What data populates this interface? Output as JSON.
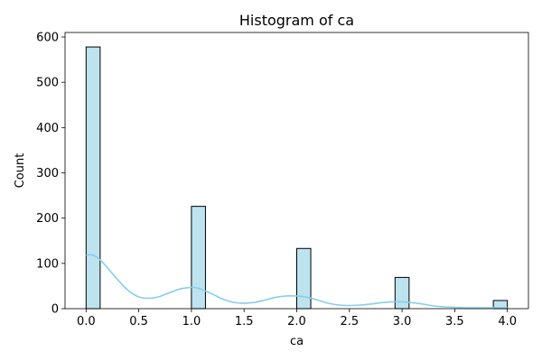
{
  "chart_data": {
    "type": "bar",
    "title": "Histogram of ca",
    "xlabel": "ca",
    "ylabel": "Count",
    "xlim": [
      -0.2,
      4.2
    ],
    "ylim": [
      0,
      610
    ],
    "xticks": [
      0.0,
      0.5,
      1.0,
      1.5,
      2.0,
      2.5,
      3.0,
      3.5,
      4.0
    ],
    "xtick_labels": [
      "0.0",
      "0.5",
      "1.0",
      "1.5",
      "2.0",
      "2.5",
      "3.0",
      "3.5",
      "4.0"
    ],
    "yticks": [
      0,
      100,
      200,
      300,
      400,
      500,
      600
    ],
    "ytick_labels": [
      "0",
      "100",
      "200",
      "300",
      "400",
      "500",
      "600"
    ],
    "bins": [
      {
        "x0": 0.0,
        "x1": 0.1333,
        "count": 578
      },
      {
        "x0": 1.0,
        "x1": 1.1333,
        "count": 226
      },
      {
        "x0": 2.0,
        "x1": 2.1333,
        "count": 133
      },
      {
        "x0": 2.9333,
        "x1": 3.0667,
        "count": 69
      },
      {
        "x0": 3.8667,
        "x1": 4.0,
        "count": 18
      }
    ],
    "kde": {
      "x": [
        0.0,
        0.05,
        0.1,
        0.15,
        0.2,
        0.3,
        0.4,
        0.5,
        0.6,
        0.7,
        0.8,
        0.9,
        1.0,
        1.05,
        1.1,
        1.2,
        1.3,
        1.4,
        1.5,
        1.6,
        1.7,
        1.8,
        1.9,
        2.0,
        2.05,
        2.1,
        2.2,
        2.3,
        2.4,
        2.5,
        2.6,
        2.7,
        2.8,
        2.9,
        3.0,
        3.05,
        3.1,
        3.2,
        3.3,
        3.4,
        3.5,
        3.6,
        3.7,
        3.8,
        3.9,
        4.0
      ],
      "y": [
        118,
        119,
        114,
        104,
        91,
        64,
        40,
        26,
        23,
        27,
        36,
        44,
        47,
        46,
        42,
        32,
        21,
        14,
        12,
        14,
        19,
        25,
        28,
        28,
        27,
        25,
        19,
        12,
        8,
        7,
        8,
        10,
        13,
        15,
        15,
        14,
        13,
        10,
        6,
        4,
        3,
        2,
        2,
        2,
        2,
        2
      ]
    },
    "colors": {
      "bar_fill": "#bde3ef",
      "bar_edge": "#000000",
      "kde_line": "#87ceeb",
      "axis": "#000000"
    },
    "grid": false
  }
}
